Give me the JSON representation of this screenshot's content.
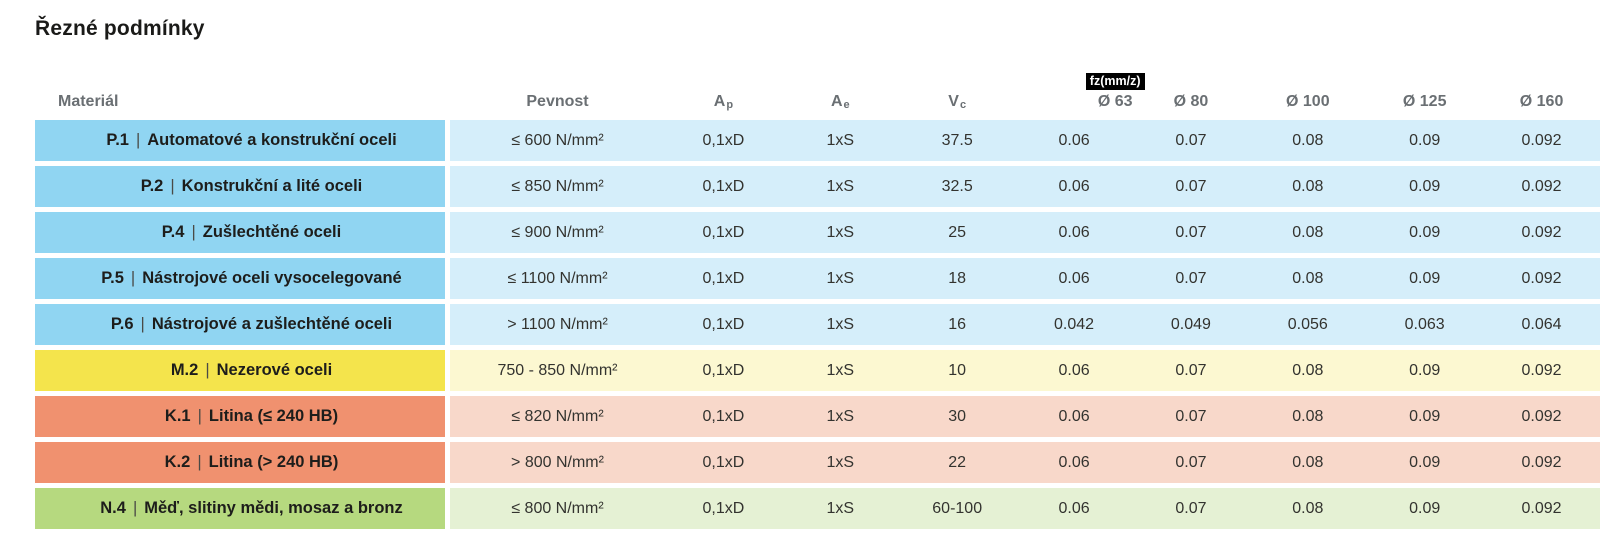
{
  "page": {
    "title": "Řezné podmínky"
  },
  "colors": {
    "blue": {
      "strong": "#90d5f2",
      "light": "#d5eefa"
    },
    "yellow": {
      "strong": "#f4e44c",
      "light": "#fcf8d1"
    },
    "salmon": {
      "strong": "#f0916f",
      "light": "#f8d8ca"
    },
    "green": {
      "strong": "#b6d97f",
      "light": "#e5f1d4"
    },
    "badge_bg": "#000000",
    "badge_text": "#ffffff"
  },
  "table": {
    "material_separator": "|",
    "headers": {
      "material": "Materiál",
      "pevnost": "Pevnost",
      "ap": {
        "base": "A",
        "sub": "p"
      },
      "ae": {
        "base": "A",
        "sub": "e"
      },
      "vc": {
        "base": "V",
        "sub": "c"
      },
      "fz_badge": "fz(mm/z)",
      "diameters": [
        "Ø 63",
        "Ø 80",
        "Ø 100",
        "Ø 125",
        "Ø 160"
      ]
    },
    "rows": [
      {
        "theme": "blue",
        "material": {
          "code": "P.1",
          "name": "Automatové a konstrukční oceli"
        },
        "pevnost": "≤ 600 N/mm²",
        "ap": "0,1xD",
        "ae": "1xS",
        "vc": "37.5",
        "fz": [
          "0.06",
          "0.07",
          "0.08",
          "0.09",
          "0.092"
        ]
      },
      {
        "theme": "blue",
        "material": {
          "code": "P.2",
          "name": "Konstrukční a lité oceli"
        },
        "pevnost": "≤ 850 N/mm²",
        "ap": "0,1xD",
        "ae": "1xS",
        "vc": "32.5",
        "fz": [
          "0.06",
          "0.07",
          "0.08",
          "0.09",
          "0.092"
        ]
      },
      {
        "theme": "blue",
        "material": {
          "code": "P.4",
          "name": "Zušlechtěné oceli"
        },
        "pevnost": "≤ 900 N/mm²",
        "ap": "0,1xD",
        "ae": "1xS",
        "vc": "25",
        "fz": [
          "0.06",
          "0.07",
          "0.08",
          "0.09",
          "0.092"
        ]
      },
      {
        "theme": "blue",
        "material": {
          "code": "P.5",
          "name": "Nástrojové oceli vysocelegované"
        },
        "pevnost": "≤ 1100 N/mm²",
        "ap": "0,1xD",
        "ae": "1xS",
        "vc": "18",
        "fz": [
          "0.06",
          "0.07",
          "0.08",
          "0.09",
          "0.092"
        ]
      },
      {
        "theme": "blue",
        "material": {
          "code": "P.6",
          "name": "Nástrojové a zušlechtěné oceli"
        },
        "pevnost": "> 1100 N/mm²",
        "ap": "0,1xD",
        "ae": "1xS",
        "vc": "16",
        "fz": [
          "0.042",
          "0.049",
          "0.056",
          "0.063",
          "0.064"
        ]
      },
      {
        "theme": "yellow",
        "material": {
          "code": "M.2",
          "name": "Nezerové oceli"
        },
        "pevnost": "750 - 850 N/mm²",
        "ap": "0,1xD",
        "ae": "1xS",
        "vc": "10",
        "fz": [
          "0.06",
          "0.07",
          "0.08",
          "0.09",
          "0.092"
        ]
      },
      {
        "theme": "salmon",
        "material": {
          "code": "K.1",
          "name": "Litina (≤ 240 HB)"
        },
        "pevnost": "≤ 820 N/mm²",
        "ap": "0,1xD",
        "ae": "1xS",
        "vc": "30",
        "fz": [
          "0.06",
          "0.07",
          "0.08",
          "0.09",
          "0.092"
        ]
      },
      {
        "theme": "salmon",
        "material": {
          "code": "K.2",
          "name": "Litina (> 240 HB)"
        },
        "pevnost": "> 800 N/mm²",
        "ap": "0,1xD",
        "ae": "1xS",
        "vc": "22",
        "fz": [
          "0.06",
          "0.07",
          "0.08",
          "0.09",
          "0.092"
        ]
      },
      {
        "theme": "green",
        "material": {
          "code": "N.4",
          "name": "Měď, slitiny mědi, mosaz a bronz"
        },
        "pevnost": "≤ 800 N/mm²",
        "ap": "0,1xD",
        "ae": "1xS",
        "vc": "60-100",
        "fz": [
          "0.06",
          "0.07",
          "0.08",
          "0.09",
          "0.092"
        ]
      }
    ]
  }
}
